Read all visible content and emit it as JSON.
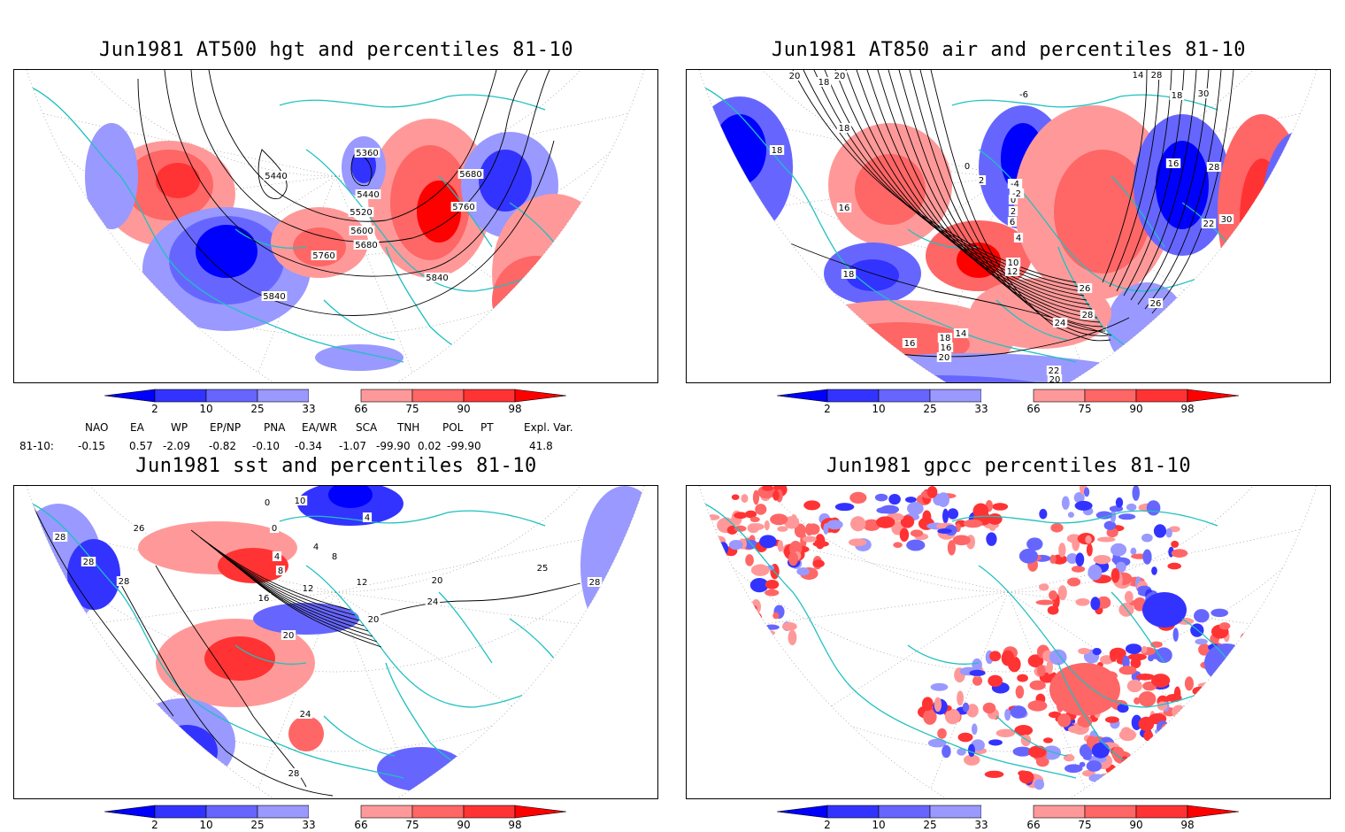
{
  "panels": [
    {
      "title": "Jun1981 AT500 hgt and percentiles 81-10",
      "contour_labels": [
        "5360",
        "5440",
        "5440",
        "5520",
        "5600",
        "5680",
        "5680",
        "5760",
        "5760",
        "5840",
        "5840"
      ]
    },
    {
      "title": "Jun1981 AT850 air and percentiles 81-10",
      "contour_labels": [
        "20",
        "20",
        "18",
        "18",
        "18",
        "16",
        "16",
        "18",
        "20",
        "16",
        "14",
        "16",
        "18",
        "20",
        "22",
        "24",
        "26",
        "28",
        "26",
        "24",
        "22",
        "20",
        "18",
        "30",
        "28",
        "30",
        "26",
        "28",
        "16",
        "14",
        "12",
        "10",
        "4",
        "6",
        "2",
        "0",
        "-2",
        "-4",
        "-6",
        "0",
        "2",
        "18"
      ]
    },
    {
      "title": "Jun1981 sst and percentiles 81-10",
      "contour_labels": [
        "24",
        "28",
        "28",
        "28",
        "26",
        "0",
        "10",
        "0",
        "4",
        "4",
        "8",
        "8",
        "12",
        "16",
        "20",
        "24",
        "28",
        "4",
        "12",
        "20",
        "20",
        "24",
        "25",
        "28"
      ]
    },
    {
      "title": "Jun1981 gpcc percentiles 81-10",
      "contour_labels": []
    }
  ],
  "colorbar": {
    "ticks": [
      "2",
      "10",
      "25",
      "33",
      "66",
      "75",
      "90",
      "98"
    ],
    "colors": [
      "#0000ff",
      "#3333ff",
      "#6666ff",
      "#9999ff",
      "#ffffff",
      "#ff9999",
      "#ff6666",
      "#ff3333",
      "#ff0000"
    ]
  },
  "indices": {
    "header": [
      "NAO",
      "EA",
      "WP",
      "EP/NP",
      "PNA",
      "EA/WR",
      "SCA",
      "TNH",
      "POL",
      "PT",
      "Expl. Var."
    ],
    "row_label": "81-10:",
    "values": [
      "-0.15",
      "0.57",
      "-2.09",
      "-0.82",
      "-0.10",
      "-0.34",
      "-1.07",
      "-99.90",
      "0.02",
      "-99.90",
      "41.8"
    ]
  }
}
